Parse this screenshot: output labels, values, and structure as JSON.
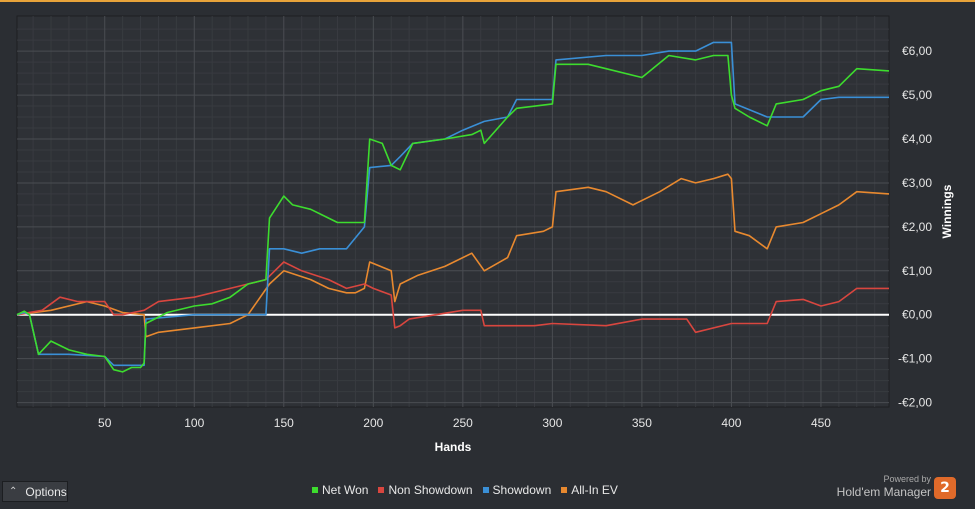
{
  "colors": {
    "background": "#2b2e33",
    "plot_background": "#2e3136",
    "grid_major": "#4a4d52",
    "grid_minor": "#383b40",
    "zero_line": "#ffffff",
    "net_won": "#3ddc2e",
    "non_showdown": "#d9463f",
    "showdown": "#3a8fd6",
    "all_in_ev": "#e8892f",
    "accent": "#e8a33a"
  },
  "options": {
    "label": "Options",
    "icon": "chevron-up-icon"
  },
  "brand": {
    "powered_by": "Powered by",
    "name": "Hold'em Manager",
    "badge": "2"
  },
  "chart_data": {
    "type": "line",
    "xlabel": "Hands",
    "ylabel": "Winnings",
    "xlim": [
      1,
      488
    ],
    "ylim": [
      -2.1,
      6.8
    ],
    "x_ticks": [
      50,
      100,
      150,
      200,
      250,
      300,
      350,
      400,
      450
    ],
    "y_ticks": [
      -2,
      -1,
      0,
      1,
      2,
      3,
      4,
      5,
      6
    ],
    "y_tick_labels": [
      "-€2,00",
      "-€1,00",
      "€0,00",
      "€1,00",
      "€2,00",
      "€3,00",
      "€4,00",
      "€5,00",
      "€6,00"
    ],
    "grid": true,
    "legend_position": "bottom",
    "series": [
      {
        "name": "Net Won",
        "color": "#3ddc2e",
        "x": [
          1,
          5,
          8,
          13,
          20,
          30,
          40,
          50,
          55,
          60,
          65,
          70,
          72,
          73,
          85,
          100,
          110,
          120,
          130,
          140,
          142,
          150,
          155,
          165,
          175,
          180,
          195,
          198,
          205,
          210,
          215,
          222,
          240,
          255,
          260,
          262,
          275,
          280,
          300,
          302,
          320,
          330,
          350,
          365,
          380,
          390,
          398,
          400,
          402,
          410,
          420,
          425,
          440,
          450,
          460,
          470,
          488
        ],
        "y": [
          0,
          0.08,
          0,
          -0.9,
          -0.6,
          -0.8,
          -0.9,
          -0.95,
          -1.25,
          -1.3,
          -1.2,
          -1.2,
          -1.1,
          -0.2,
          0.05,
          0.2,
          0.25,
          0.4,
          0.7,
          0.8,
          2.2,
          2.7,
          2.5,
          2.4,
          2.2,
          2.1,
          2.1,
          4.0,
          3.9,
          3.4,
          3.3,
          3.9,
          4.0,
          4.1,
          4.2,
          3.9,
          4.5,
          4.7,
          4.8,
          5.7,
          5.7,
          5.6,
          5.4,
          5.9,
          5.8,
          5.9,
          5.9,
          5.0,
          4.7,
          4.5,
          4.3,
          4.8,
          4.9,
          5.1,
          5.2,
          5.6,
          5.55
        ]
      },
      {
        "name": "Non Showdown",
        "color": "#d9463f",
        "x": [
          1,
          15,
          25,
          35,
          50,
          55,
          60,
          72,
          80,
          100,
          120,
          140,
          145,
          150,
          160,
          175,
          185,
          195,
          200,
          210,
          212,
          215,
          220,
          250,
          260,
          262,
          290,
          300,
          330,
          350,
          375,
          380,
          400,
          420,
          425,
          440,
          450,
          460,
          470,
          488
        ],
        "y": [
          0,
          0.1,
          0.4,
          0.3,
          0.3,
          0,
          0,
          0.1,
          0.3,
          0.4,
          0.6,
          0.8,
          1.0,
          1.2,
          1.0,
          0.8,
          0.6,
          0.7,
          0.6,
          0.45,
          -0.3,
          -0.25,
          -0.1,
          0.1,
          0.1,
          -0.25,
          -0.25,
          -0.2,
          -0.25,
          -0.1,
          -0.1,
          -0.4,
          -0.2,
          -0.2,
          0.3,
          0.35,
          0.2,
          0.3,
          0.6,
          0.6
        ]
      },
      {
        "name": "Showdown",
        "color": "#3a8fd6",
        "x": [
          1,
          5,
          8,
          13,
          30,
          50,
          55,
          72,
          73,
          100,
          130,
          140,
          142,
          150,
          160,
          170,
          185,
          195,
          198,
          210,
          215,
          222,
          240,
          250,
          262,
          275,
          280,
          300,
          302,
          330,
          340,
          350,
          365,
          380,
          390,
          398,
          400,
          402,
          420,
          440,
          450,
          460,
          488
        ],
        "y": [
          0,
          0.05,
          0,
          -0.9,
          -0.9,
          -0.95,
          -1.15,
          -1.15,
          -0.1,
          0,
          0,
          0,
          1.5,
          1.5,
          1.4,
          1.5,
          1.5,
          2.0,
          3.35,
          3.4,
          3.6,
          3.9,
          4.0,
          4.2,
          4.4,
          4.5,
          4.9,
          4.9,
          5.8,
          5.9,
          5.9,
          5.9,
          6.0,
          6.0,
          6.2,
          6.2,
          6.2,
          4.8,
          4.5,
          4.5,
          4.9,
          4.95,
          4.95
        ]
      },
      {
        "name": "All-In EV",
        "color": "#e8892f",
        "x": [
          1,
          20,
          40,
          50,
          60,
          72,
          73,
          80,
          100,
          120,
          130,
          142,
          150,
          165,
          175,
          185,
          190,
          195,
          198,
          210,
          212,
          215,
          225,
          240,
          255,
          262,
          275,
          280,
          295,
          300,
          302,
          320,
          330,
          345,
          360,
          372,
          380,
          390,
          398,
          400,
          402,
          410,
          420,
          425,
          440,
          450,
          460,
          470,
          488
        ],
        "y": [
          0,
          0.1,
          0.3,
          0.2,
          0.05,
          0,
          -0.5,
          -0.4,
          -0.3,
          -0.2,
          0,
          0.7,
          1.0,
          0.8,
          0.6,
          0.5,
          0.5,
          0.6,
          1.2,
          1.0,
          0.3,
          0.7,
          0.9,
          1.1,
          1.4,
          1.0,
          1.3,
          1.8,
          1.9,
          2.0,
          2.8,
          2.9,
          2.8,
          2.5,
          2.8,
          3.1,
          3.0,
          3.1,
          3.2,
          3.1,
          1.9,
          1.8,
          1.5,
          2.0,
          2.1,
          2.3,
          2.5,
          2.8,
          2.75
        ]
      }
    ]
  }
}
